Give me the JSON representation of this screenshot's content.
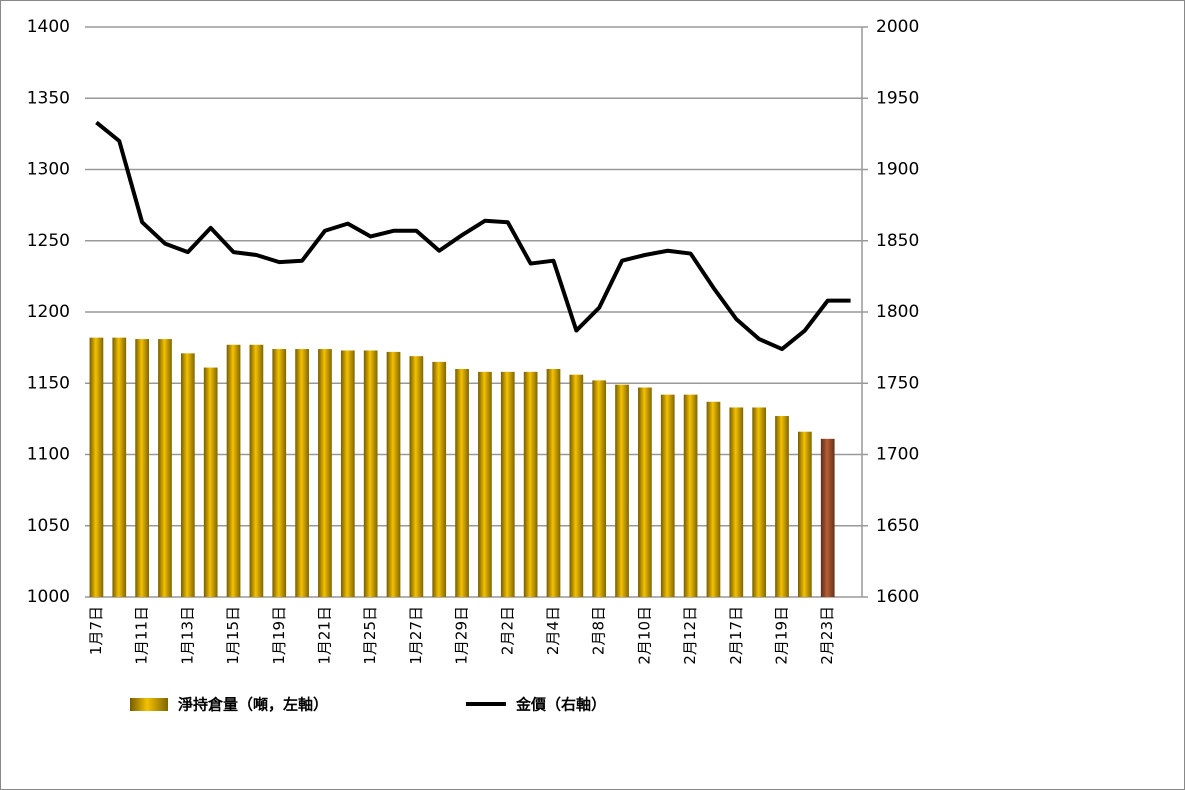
{
  "chart_data": {
    "type": "bar_line",
    "categories": [
      "1月7日",
      null,
      "1月11日",
      null,
      "1月13日",
      null,
      "1月15日",
      null,
      "1月19日",
      null,
      "1月21日",
      null,
      "1月25日",
      null,
      "1月27日",
      null,
      "1月29日",
      null,
      "2月2日",
      null,
      "2月4日",
      null,
      "2月8日",
      null,
      "2月10日",
      null,
      "2月12日",
      null,
      "2月17日",
      null,
      "2月19日",
      null,
      "2月23日",
      null
    ],
    "series": [
      {
        "name": "淨持倉量（噸，左軸）",
        "type": "bar",
        "color": "#d4a800",
        "colors": [
          "#d4a800",
          "#d4a800",
          "#d4a800",
          "#d4a800",
          "#d4a800",
          "#d4a800",
          "#d4a800",
          "#d4a800",
          "#d4a800",
          "#d4a800",
          "#d4a800",
          "#d4a800",
          "#d4a800",
          "#d4a800",
          "#d4a800",
          "#d4a800",
          "#d4a800",
          "#d4a800",
          "#d4a800",
          "#d4a800",
          "#d4a800",
          "#d4a800",
          "#d4a800",
          "#d4a800",
          "#d4a800",
          "#d4a800",
          "#d4a800",
          "#d4a800",
          "#d4a800",
          "#d4a800",
          "#d4a800",
          "#d4a800",
          "#a0522d",
          "#d4a800"
        ],
        "values": [
          1182,
          1182,
          1181,
          1181,
          1171,
          1161,
          1177,
          1177,
          1174,
          1174,
          1174,
          1173,
          1173,
          1172,
          1169,
          1165,
          1160,
          1158,
          1158,
          1158,
          1160,
          1156,
          1152,
          1149,
          1147,
          1142,
          1142,
          1137,
          1133,
          1133,
          1127,
          1116,
          1111,
          null
        ]
      },
      {
        "name": "金價（右軸）",
        "type": "line",
        "axis": "y2",
        "color": "#000000",
        "values": [
          1933,
          1920,
          1863,
          1848,
          1842,
          1859,
          1842,
          1840,
          1835,
          1836,
          1857,
          1862,
          1853,
          1857,
          1857,
          1843,
          1854,
          1864,
          1863,
          1834,
          1836,
          1787,
          1803,
          1836,
          1840,
          1843,
          1841,
          1817,
          1795,
          1781,
          1774,
          1787,
          1808,
          1808
        ]
      }
    ],
    "ylim": [
      1000,
      1400
    ],
    "yticks": [
      1000,
      1050,
      1100,
      1150,
      1200,
      1250,
      1300,
      1350,
      1400
    ],
    "y2lim": [
      1600,
      2000
    ],
    "y2ticks": [
      1600,
      1650,
      1700,
      1750,
      1800,
      1850,
      1900,
      1950,
      2000
    ],
    "grid": true,
    "legend": "bottom"
  }
}
